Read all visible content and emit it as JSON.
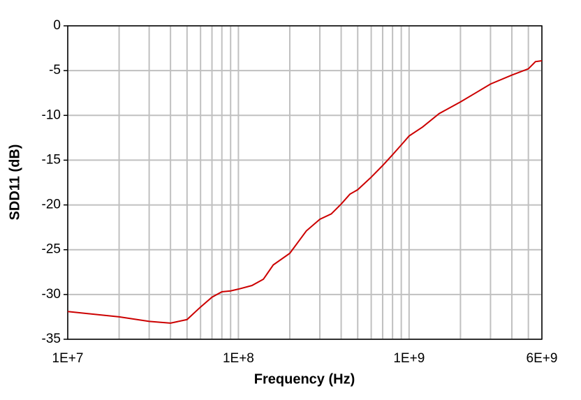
{
  "chart_data": {
    "type": "line",
    "x_label": "Frequency (Hz)",
    "y_label": "SDD11 (dB)",
    "x_scale": "log",
    "grid": true,
    "xlim": [
      10000000,
      6000000000
    ],
    "xticks": [
      {
        "value": 10000000,
        "label": "1E+7"
      },
      {
        "value": 100000000,
        "label": "1E+8"
      },
      {
        "value": 1000000000,
        "label": "1E+9"
      },
      {
        "value": 6000000000,
        "label": "6E+9"
      }
    ],
    "x_minor_gridlines": [
      20000000,
      30000000,
      40000000,
      50000000,
      60000000,
      70000000,
      80000000,
      90000000,
      200000000,
      300000000,
      400000000,
      500000000,
      600000000,
      700000000,
      800000000,
      900000000,
      2000000000,
      3000000000,
      4000000000,
      5000000000
    ],
    "ylim": [
      -35,
      0
    ],
    "yticks": [
      -35,
      -30,
      -25,
      -20,
      -15,
      -10,
      -5,
      0
    ],
    "x": [
      10000000,
      20000000,
      30000000,
      40000000,
      50000000,
      60000000,
      70000000,
      80000000,
      90000000,
      100000000,
      120000000,
      140000000,
      160000000,
      200000000,
      250000000,
      300000000,
      350000000,
      400000000,
      450000000,
      500000000,
      600000000,
      700000000,
      800000000,
      900000000,
      1000000000,
      1200000000,
      1500000000,
      2000000000,
      2500000000,
      3000000000,
      4000000000,
      5000000000,
      5500000000,
      6000000000
    ],
    "series": [
      {
        "color": "#cc0000",
        "values": [
          -31.9,
          -32.5,
          -33.0,
          -33.2,
          -32.8,
          -31.4,
          -30.3,
          -29.7,
          -29.6,
          -29.4,
          -29.0,
          -28.3,
          -26.7,
          -25.4,
          -22.9,
          -21.6,
          -21.0,
          -19.9,
          -18.8,
          -18.3,
          -16.9,
          -15.6,
          -14.4,
          -13.3,
          -12.3,
          -11.3,
          -9.8,
          -8.5,
          -7.4,
          -6.5,
          -5.5,
          -4.8,
          -4.0,
          -3.9
        ]
      }
    ]
  }
}
